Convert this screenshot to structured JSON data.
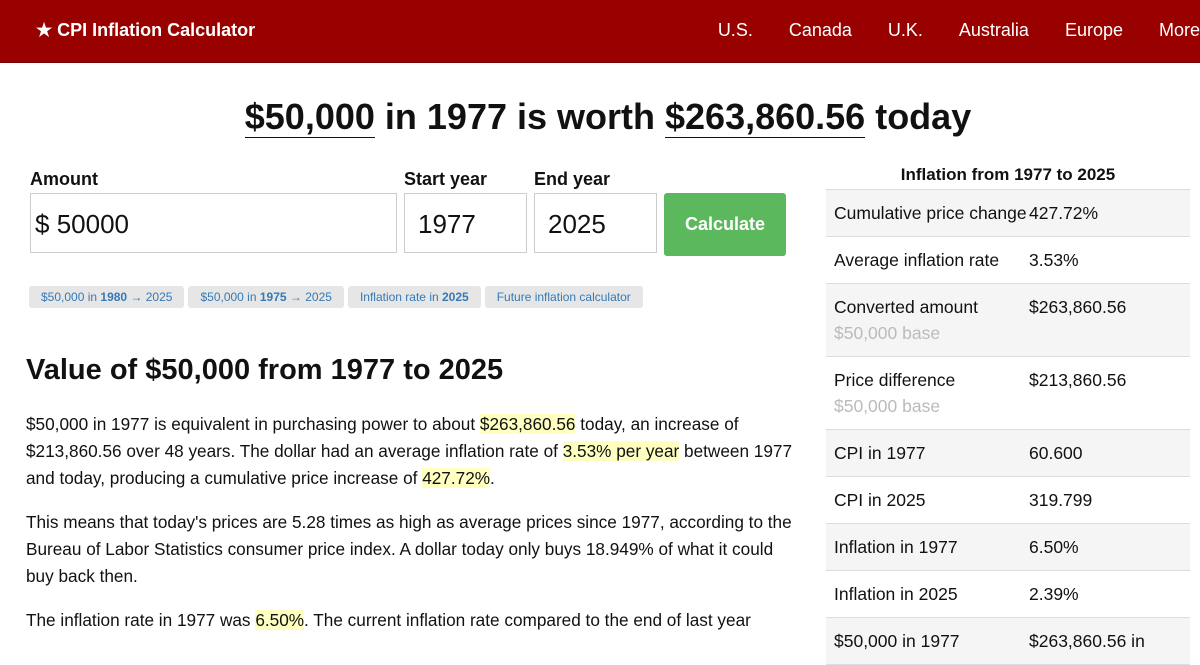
{
  "nav": {
    "brand": "★ CPI Inflation Calculator",
    "links": [
      "U.S.",
      "Canada",
      "U.K.",
      "Australia",
      "Europe",
      "More"
    ]
  },
  "headline": [
    {
      "text": "$50,000",
      "underline": true
    },
    {
      "text": " in 1977 is worth ",
      "underline": false
    },
    {
      "text": "$263,860.56",
      "underline": true
    },
    {
      "text": " today",
      "underline": false
    }
  ],
  "form": {
    "amount_label": "Amount",
    "currency": "$",
    "amount": "50000",
    "start_label": "Start year",
    "start": "1977",
    "end_label": "End year",
    "end": "2025",
    "button": "Calculate"
  },
  "chips": [
    [
      {
        "text": "$50,000 in ",
        "bold": false
      },
      {
        "text": "1980",
        "bold": true
      },
      {
        "text": " → 2025",
        "bold": false
      }
    ],
    [
      {
        "text": "$50,000 in ",
        "bold": false
      },
      {
        "text": "1975",
        "bold": true
      },
      {
        "text": " → 2025",
        "bold": false
      }
    ],
    [
      {
        "text": "Inflation rate in ",
        "bold": false
      },
      {
        "text": "2025",
        "bold": true
      }
    ],
    [
      {
        "text": "Future inflation calculator",
        "bold": false
      }
    ]
  ],
  "section_title": "Value of $50,000 from 1977 to 2025",
  "paragraphs": [
    [
      {
        "text": "$50,000 in 1977 is equivalent in purchasing power to about ",
        "highlight": false
      },
      {
        "text": "$263,860.56",
        "highlight": true
      },
      {
        "text": " today, an increase of $213,860.56 over 48 years. The dollar had an average inflation rate of ",
        "highlight": false
      },
      {
        "text": "3.53% per year",
        "highlight": true
      },
      {
        "text": " between 1977 and today, producing a cumulative price increase of ",
        "highlight": false
      },
      {
        "text": "427.72%",
        "highlight": true
      },
      {
        "text": ".",
        "highlight": false
      }
    ],
    [
      {
        "text": "This means that today's prices are 5.28 times as high as average prices since 1977, according to the Bureau of Labor Statistics consumer price index. A dollar today only buys 18.949% of what it could buy back then.",
        "highlight": false
      }
    ],
    [
      {
        "text": "The inflation rate in 1977 was ",
        "highlight": false
      },
      {
        "text": "6.50%",
        "highlight": true
      },
      {
        "text": ". The current inflation rate compared to the end of last year",
        "highlight": false
      }
    ]
  ],
  "table": {
    "title": "Inflation from 1977 to 2025",
    "rows": [
      {
        "label": "Cumulative price change",
        "value": "427.72%"
      },
      {
        "label": "Average inflation rate",
        "value": "3.53%"
      },
      {
        "label": "Converted amount",
        "note": "$50,000 base",
        "value": "$263,860.56"
      },
      {
        "label": "Price difference",
        "note": "$50,000 base",
        "value": "$213,860.56"
      },
      {
        "label": "CPI in 1977",
        "value": "60.600"
      },
      {
        "label": "CPI in 2025",
        "value": "319.799"
      },
      {
        "label": "Inflation in 1977",
        "value": "6.50%"
      },
      {
        "label": "Inflation in 2025",
        "value": "2.39%"
      },
      {
        "label": "$50,000 in 1977",
        "value": "$263,860.56 in"
      }
    ]
  }
}
